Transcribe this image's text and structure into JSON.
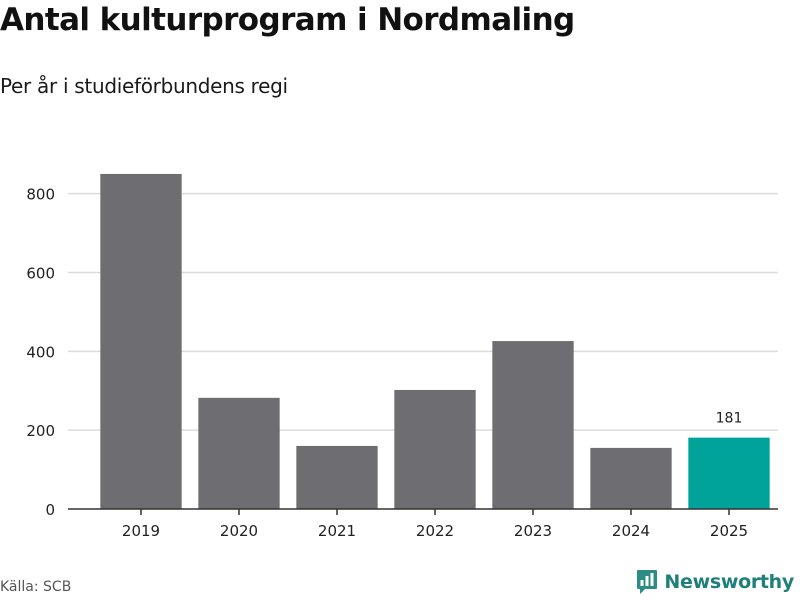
{
  "header": {
    "title": "Antal kulturprogram i Nordmaling",
    "subtitle": "Per år i studieförbundens regi"
  },
  "footer": {
    "source": "Källa: SCB",
    "brand": "Newsworthy"
  },
  "colors": {
    "bar_default": "#6d6d72",
    "bar_highlight": "#00a39a",
    "grid": "#dcdcdc",
    "axis": "#333333",
    "brand": "#1f7f7a"
  },
  "icons": {
    "brand_logo": "newsworthy-chart-icon"
  },
  "chart_data": {
    "type": "bar",
    "categories": [
      "2019",
      "2020",
      "2021",
      "2022",
      "2023",
      "2024",
      "2025"
    ],
    "values": [
      850,
      282,
      160,
      302,
      426,
      155,
      181
    ],
    "highlight_index": 6,
    "data_labels": [
      {
        "category": "2025",
        "text": "181"
      }
    ],
    "y_ticks": [
      0,
      200,
      400,
      600,
      800
    ],
    "ylim": [
      0,
      860
    ],
    "grid": true,
    "legend": "none"
  }
}
